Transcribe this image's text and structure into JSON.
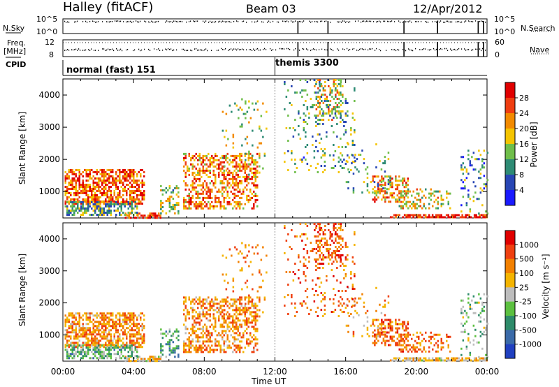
{
  "header": {
    "station": "Halley (fitACF)",
    "beam": "Beam 03",
    "date": "12/Apr/2012"
  },
  "side_labels": {
    "n_sky": "N.Sky",
    "freq": "Freq.",
    "mhz": "[MHz]",
    "cpid": "CPID",
    "n_search": "N.Search",
    "nave": "Nave"
  },
  "chart_data": [
    {
      "type": "line",
      "name": "nsky-nsearch-panel",
      "y_left_ticks": [
        "10^5",
        "10^0"
      ],
      "y_right_ticks": [
        "10^5",
        "10^0"
      ],
      "xlim": [
        0,
        24
      ],
      "marker_times_ut": [
        13.3,
        15.0,
        19.3,
        21.2,
        23.5,
        23.8
      ]
    },
    {
      "type": "line",
      "name": "freq-nave-panel",
      "y_left_ticks": [
        "12",
        "8"
      ],
      "y_right_ticks": [
        "60",
        "0"
      ],
      "xlim": [
        0,
        24
      ],
      "marker_times_ut": [
        13.3,
        15.0,
        19.3,
        21.2,
        23.5,
        23.8
      ]
    },
    {
      "type": "table",
      "name": "cpid-bar",
      "segments": [
        {
          "label": "normal (fast) 151",
          "start_ut": 0.0
        },
        {
          "label": "themis 3300",
          "start_ut": 12.0
        }
      ]
    },
    {
      "type": "heatmap",
      "name": "power-panel",
      "xlabel": "",
      "ylabel": "Slant Range [km]",
      "xlim": [
        0,
        24
      ],
      "ylim": [
        180,
        4500
      ],
      "yticks": [
        1000,
        2000,
        3000,
        4000
      ],
      "colorbar": {
        "label": "Power [dB]",
        "ticks": [
          "4",
          "8",
          "12",
          "16",
          "20",
          "24",
          "28"
        ],
        "colors": [
          "#1a1aff",
          "#2846b4",
          "#2e8b74",
          "#6fbe4a",
          "#f4c400",
          "#f28a00",
          "#ef3d10",
          "#e00000"
        ]
      }
    },
    {
      "type": "heatmap",
      "name": "velocity-panel",
      "xlabel": "Time UT",
      "ylabel": "Slant Range [km]",
      "xlim": [
        0,
        24
      ],
      "ylim": [
        180,
        4500
      ],
      "yticks": [
        1000,
        2000,
        3000,
        4000
      ],
      "xticks": [
        "00:00",
        "04:00",
        "08:00",
        "12:00",
        "16:00",
        "20:00",
        "00:00"
      ],
      "colorbar": {
        "label": "Velocity [m s⁻¹]",
        "ticks": [
          "1000",
          "500",
          "100",
          "25",
          "-25",
          "-100",
          "-500",
          "-1000"
        ],
        "colors": [
          "#2040c0",
          "#3a6aa8",
          "#2e8b6a",
          "#5cc040",
          "#bdbdbd",
          "#f4b400",
          "#f28000",
          "#ef4010",
          "#e00000"
        ]
      }
    }
  ]
}
